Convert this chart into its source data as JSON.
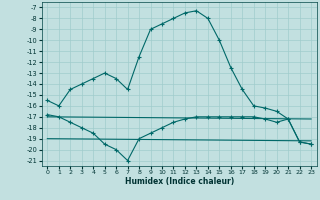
{
  "xlabel": "Humidex (Indice chaleur)",
  "background_color": "#c2e0e0",
  "grid_color": "#a0cccc",
  "line_color": "#006868",
  "xlim": [
    -0.5,
    23.5
  ],
  "ylim": [
    -21.5,
    -6.5
  ],
  "yticks": [
    -7,
    -8,
    -9,
    -10,
    -11,
    -12,
    -13,
    -14,
    -15,
    -16,
    -17,
    -18,
    -19,
    -20,
    -21
  ],
  "xticks": [
    0,
    1,
    2,
    3,
    4,
    5,
    6,
    7,
    8,
    9,
    10,
    11,
    12,
    13,
    14,
    15,
    16,
    17,
    18,
    19,
    20,
    21,
    22,
    23
  ],
  "line1_x": [
    0,
    1,
    2,
    3,
    4,
    5,
    6,
    7,
    8,
    9,
    10,
    11,
    12,
    13,
    14,
    15,
    16,
    17,
    18,
    19,
    20,
    21,
    22,
    23
  ],
  "line1_y": [
    -15.5,
    -16.0,
    -14.5,
    -14.0,
    -13.5,
    -13.0,
    -13.5,
    -14.5,
    -11.5,
    -9.0,
    -8.5,
    -8.0,
    -7.5,
    -7.3,
    -8.0,
    -10.0,
    -12.5,
    -14.5,
    -16.0,
    -16.2,
    -16.5,
    -17.2,
    -19.3,
    -19.5
  ],
  "line2_x": [
    0,
    1,
    2,
    3,
    4,
    5,
    6,
    7,
    8,
    9,
    10,
    11,
    12,
    13,
    14,
    15,
    16,
    17,
    18,
    19,
    20,
    21,
    22,
    23
  ],
  "line2_y": [
    -16.8,
    -17.0,
    -17.5,
    -18.0,
    -18.5,
    -19.5,
    -20.0,
    -21.0,
    -19.0,
    -18.5,
    -18.0,
    -17.5,
    -17.2,
    -17.0,
    -17.0,
    -17.0,
    -17.0,
    -17.0,
    -17.0,
    -17.2,
    -17.5,
    -17.2,
    -19.3,
    -19.5
  ],
  "line3_x": [
    0,
    23
  ],
  "line3_y": [
    -17.0,
    -17.2
  ],
  "line4_x": [
    0,
    23
  ],
  "line4_y": [
    -19.0,
    -19.2
  ]
}
